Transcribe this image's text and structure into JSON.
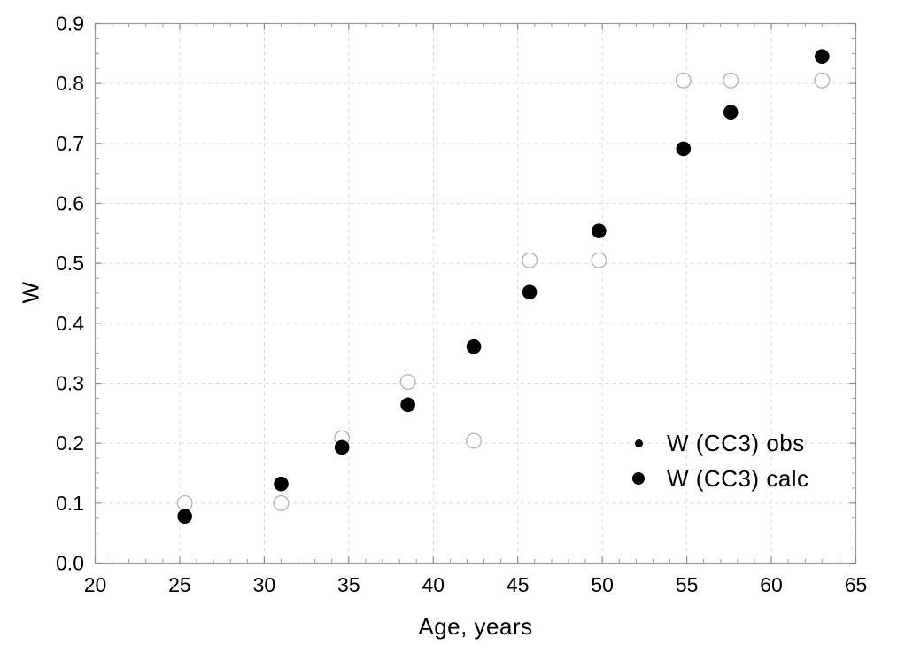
{
  "axes": {
    "x_title": "Age, years",
    "y_title": "W",
    "x_tick_labels": [
      "20",
      "25",
      "30",
      "35",
      "40",
      "45",
      "50",
      "55",
      "60",
      "65"
    ],
    "y_tick_labels": [
      "0.0",
      "0.1",
      "0.2",
      "0.3",
      "0.4",
      "0.5",
      "0.6",
      "0.7",
      "0.8",
      "0.9"
    ]
  },
  "legend": {
    "position": "inside-lower-right",
    "items": [
      {
        "label": "W (CC3) obs",
        "marker": "small-filled-dot"
      },
      {
        "label": "W (CC3) calc",
        "marker": "large-filled-dot"
      }
    ]
  },
  "chart_data": {
    "type": "scatter",
    "title": "",
    "xlabel": "Age, years",
    "ylabel": "W",
    "xlim": [
      20,
      65
    ],
    "ylim": [
      0.0,
      0.9
    ],
    "x_major_ticks": [
      20,
      25,
      30,
      35,
      40,
      45,
      50,
      55,
      60,
      65
    ],
    "x_minor_step": 1,
    "y_major_ticks": [
      0.0,
      0.1,
      0.2,
      0.3,
      0.4,
      0.5,
      0.6,
      0.7,
      0.8,
      0.9
    ],
    "y_minor_step": 0.025,
    "grid": "dashed-on-major-ticks",
    "legend_position": "inside-lower-right",
    "series": [
      {
        "name": "W (CC3) obs",
        "marker": "open-circle",
        "marker_fill": "#ffffff",
        "marker_outline": "#b5b5b5",
        "points": [
          {
            "x": 25.3,
            "y": 0.1
          },
          {
            "x": 31.0,
            "y": 0.1
          },
          {
            "x": 34.6,
            "y": 0.208
          },
          {
            "x": 38.5,
            "y": 0.302
          },
          {
            "x": 42.4,
            "y": 0.204
          },
          {
            "x": 45.7,
            "y": 0.505
          },
          {
            "x": 49.8,
            "y": 0.505
          },
          {
            "x": 54.8,
            "y": 0.805
          },
          {
            "x": 57.6,
            "y": 0.805
          },
          {
            "x": 63.0,
            "y": 0.805
          }
        ]
      },
      {
        "name": "W (CC3) calc",
        "marker": "filled-circle",
        "marker_fill": "#000000",
        "marker_outline": "#000000",
        "points": [
          {
            "x": 25.3,
            "y": 0.078
          },
          {
            "x": 31.0,
            "y": 0.132
          },
          {
            "x": 34.6,
            "y": 0.193
          },
          {
            "x": 38.5,
            "y": 0.264
          },
          {
            "x": 42.4,
            "y": 0.361
          },
          {
            "x": 45.7,
            "y": 0.452
          },
          {
            "x": 49.8,
            "y": 0.554
          },
          {
            "x": 54.8,
            "y": 0.691
          },
          {
            "x": 57.6,
            "y": 0.752
          },
          {
            "x": 63.0,
            "y": 0.845
          }
        ]
      }
    ],
    "colors": {
      "background": "#ffffff",
      "axis_border": "#999999",
      "major_tick": "#8a8a8a",
      "minor_tick": "#a8a8a8",
      "gridline": "#d8d8d8",
      "text": "#000000"
    }
  }
}
